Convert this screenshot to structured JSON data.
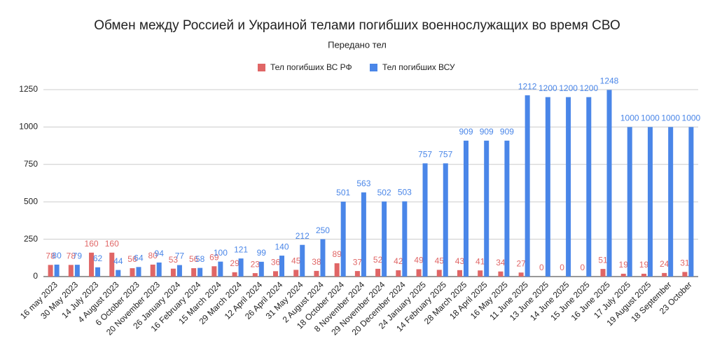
{
  "chart_data": {
    "type": "bar",
    "title": "Обмен между Россией и Украиной телами погибших военнослужащих во время СВО",
    "subtitle": "Передано тел",
    "categories": [
      "16 may 2023",
      "30 May 2023",
      "14 July 2023",
      "4 August 2023",
      "6 October 2023",
      "20 November 2023",
      "26 January 2024",
      "16 February 2024",
      "15 March 2024",
      "29 March 2024",
      "12 April 2024",
      "26 April 2024",
      "31 May 2024",
      "2 August 2024",
      "18 October 2024",
      "8 November 2024",
      "29 November 2024",
      "20 December 2024",
      "24 January 2025",
      "14 February 2025",
      "28 March 2025",
      "18 April 2025",
      "16 May 2025",
      "11 June 2025",
      "13 June 2025",
      "14 June 2025",
      "15 June 2025",
      "16 June 2025",
      "17 July 2025",
      "19 August 2025",
      "18 September",
      "23 October"
    ],
    "series": [
      {
        "name": "Тел погибших ВС  РФ",
        "color": "#e06666",
        "values": [
          78,
          78,
          160,
          160,
          56,
          80,
          53,
          56,
          69,
          29,
          23,
          36,
          45,
          38,
          89,
          37,
          52,
          42,
          49,
          45,
          43,
          41,
          34,
          27,
          0,
          0,
          0,
          51,
          19,
          19,
          24,
          31
        ]
      },
      {
        "name": "Тел погибших ВСУ",
        "color": "#4a86e8",
        "values": [
          80,
          79,
          62,
          44,
          64,
          94,
          77,
          58,
          100,
          121,
          99,
          140,
          212,
          250,
          501,
          563,
          502,
          503,
          757,
          757,
          909,
          909,
          909,
          1212,
          1200,
          1200,
          1200,
          1248,
          1000,
          1000,
          1000,
          1000
        ]
      }
    ],
    "ylim": [
      0,
      1250
    ],
    "yticks": [
      0,
      250,
      500,
      750,
      1000,
      1250
    ],
    "grid": true,
    "legend": "top"
  }
}
